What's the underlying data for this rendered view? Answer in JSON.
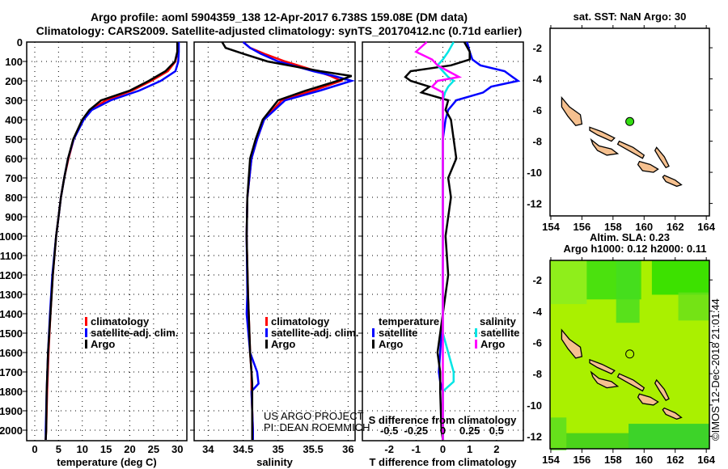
{
  "chart_data": [
    {
      "type": "line",
      "name": "temperature-panel",
      "xlabel": "temperature (deg C)",
      "xlim": [
        -1.7,
        32
      ],
      "ylim": [
        2050,
        0
      ],
      "xticks": [
        "0",
        "5",
        "10",
        "15",
        "20",
        "25",
        "30"
      ],
      "xtick_vals": [
        0,
        5,
        10,
        15,
        20,
        25,
        30
      ],
      "yticks": [
        "0",
        "100",
        "200",
        "300",
        "400",
        "500",
        "600",
        "700",
        "800",
        "900",
        "1000",
        "1100",
        "1200",
        "1300",
        "1400",
        "1500",
        "1600",
        "1700",
        "1800",
        "1900",
        "2000"
      ],
      "depth": [
        0,
        50,
        100,
        150,
        200,
        250,
        300,
        350,
        400,
        500,
        600,
        700,
        800,
        900,
        1000,
        1200,
        1400,
        1600,
        1800,
        2000,
        2050
      ],
      "series": [
        {
          "name": "climatology",
          "color": "#ff0000",
          "values": [
            30,
            30,
            29.6,
            28,
            24.5,
            20.5,
            15,
            11.8,
            10.2,
            8.2,
            7.1,
            6.2,
            5.5,
            5,
            4.5,
            3.8,
            3.3,
            2.9,
            2.6,
            2.4,
            2.3
          ]
        },
        {
          "name": "satellite-adj. clim.",
          "color": "#0000ff",
          "values": [
            30.3,
            30.3,
            30.2,
            29.6,
            26.5,
            22,
            16,
            12,
            10.3,
            8.2,
            7,
            6.2,
            5.5,
            5,
            4.5,
            3.7,
            3.2,
            2.8,
            2.5,
            2.3,
            2.3
          ]
        },
        {
          "name": "Argo",
          "color": "#000000",
          "values": [
            30,
            30,
            29.5,
            27.5,
            24,
            20,
            14,
            11.5,
            10,
            8.1,
            7,
            6.2,
            5.5,
            5,
            4.5,
            3.8,
            3.3,
            2.8,
            2.5,
            2.4,
            2.3
          ]
        }
      ]
    },
    {
      "type": "line",
      "name": "salinity-panel",
      "xlabel": "salinity",
      "xlim": [
        33.8,
        36.1
      ],
      "ylim": [
        2050,
        0
      ],
      "xticks": [
        "34",
        "34.5",
        "35",
        "35.5",
        "36"
      ],
      "xtick_vals": [
        34,
        34.5,
        35,
        35.5,
        36
      ],
      "depth": [
        0,
        30,
        60,
        100,
        150,
        175,
        200,
        250,
        300,
        400,
        500,
        600,
        800,
        1000,
        1300,
        1400,
        1600,
        1700,
        1760,
        1800,
        2000,
        2050
      ],
      "series": [
        {
          "name": "climatology",
          "color": "#ff0000",
          "values": [
            34.5,
            34.6,
            34.8,
            35.1,
            35.55,
            35.75,
            35.9,
            35.5,
            35.05,
            34.8,
            34.7,
            34.62,
            34.56,
            34.55,
            34.57,
            34.58,
            34.6,
            34.62,
            34.62,
            34.62,
            34.64,
            34.64
          ]
        },
        {
          "name": "satellite-adj. clim.",
          "color": "#0000ff",
          "values": [
            34.5,
            34.6,
            34.75,
            35.0,
            35.5,
            35.8,
            36.05,
            35.6,
            35.1,
            34.8,
            34.7,
            34.62,
            34.56,
            34.55,
            34.56,
            34.55,
            34.6,
            34.7,
            34.72,
            34.62,
            34.64,
            34.64
          ]
        },
        {
          "name": "Argo",
          "color": "#000000",
          "values": [
            34.2,
            34.25,
            34.5,
            34.85,
            35.6,
            36.05,
            35.85,
            35.4,
            35.0,
            34.78,
            34.68,
            34.6,
            34.56,
            34.55,
            34.57,
            34.58,
            34.6,
            34.62,
            34.63,
            34.63,
            34.63,
            34.63
          ]
        }
      ],
      "credit": [
        "US ARGO PROJECT",
        "PI: DEAN ROEMMICH"
      ]
    },
    {
      "type": "line",
      "name": "difference-panel",
      "xlabel": "T difference from climatology",
      "xlabel2": "S difference from climatology",
      "xlim": [
        -3,
        3
      ],
      "ylim": [
        2050,
        0
      ],
      "xticks": [
        "-2",
        "-1",
        "0",
        "1",
        "2"
      ],
      "xtick_vals": [
        -2,
        -1,
        0,
        1,
        2
      ],
      "sticks": [
        "-0.5",
        "-0.25",
        "0",
        "0.25",
        "0.5"
      ],
      "stick_vals": [
        -0.5,
        -0.25,
        0,
        0.25,
        0.5
      ],
      "depth": [
        0,
        50,
        90,
        120,
        150,
        180,
        200,
        230,
        260,
        300,
        350,
        400,
        500,
        600,
        700,
        800,
        1000,
        1200,
        1400,
        1500,
        1600,
        1700,
        1750,
        1800,
        2000,
        2050
      ],
      "series": [
        {
          "name": "temperature satellite",
          "unit": "T",
          "color": "#0000ff",
          "values": [
            0.9,
            1.0,
            1.1,
            1.4,
            2.3,
            2.6,
            2.8,
            1.8,
            1.5,
            0.5,
            0.2,
            0.1,
            0,
            0,
            0,
            0,
            0,
            0,
            0,
            -0.05,
            -0.1,
            -0.15,
            -0.1,
            0,
            0,
            0
          ]
        },
        {
          "name": "temperature Argo",
          "unit": "T",
          "color": "#000000",
          "values": [
            0.8,
            1.0,
            1.0,
            0.3,
            -1.2,
            -1.4,
            -1.2,
            -0.5,
            -0.8,
            0.2,
            0.1,
            0.3,
            0.4,
            0.5,
            0.2,
            0.3,
            0.1,
            0.2,
            0,
            -0.1,
            -0.2,
            -0.1,
            -0.1,
            -0.1,
            -0.05,
            0
          ]
        },
        {
          "name": "salinity satellite",
          "unit": "S",
          "color": "#00e5e5",
          "values": [
            0.1,
            0.05,
            0,
            -0.05,
            0,
            0.05,
            0.1,
            0.05,
            0.02,
            0,
            0,
            0,
            0,
            0,
            0,
            0,
            0,
            0,
            0,
            0,
            0.05,
            0.1,
            0.1,
            0,
            0,
            0
          ]
        },
        {
          "name": "salinity Argo",
          "unit": "S",
          "color": "#ff00ff",
          "values": [
            -0.15,
            -0.25,
            -0.1,
            -0.05,
            0.05,
            0.15,
            -0.05,
            -0.1,
            0,
            0,
            0,
            0,
            0,
            0,
            0,
            0,
            0,
            0,
            0,
            0,
            0,
            0,
            0,
            0,
            0,
            0
          ]
        }
      ]
    },
    {
      "type": "scatter",
      "name": "sst-map",
      "title": "sat. SST: NaN Argo: 30",
      "xlim": [
        153.95,
        164.2
      ],
      "ylim": [
        -12.8,
        -0.75
      ],
      "xticks": [
        "154",
        "156",
        "158",
        "160",
        "162",
        "164"
      ],
      "yticks": [
        "-2",
        "-4",
        "-6",
        "-8",
        "-10",
        "-12"
      ],
      "points": [
        {
          "lon": 159.08,
          "lat": -6.738,
          "color": "#33dd11"
        }
      ]
    },
    {
      "type": "heatmap",
      "name": "sla-map",
      "title": "Altim. SLA: 0.23",
      "subtitle": "Argo h1000: 0.12 h2000: 0.11",
      "xlim": [
        153.95,
        164.2
      ],
      "ylim": [
        -12.8,
        -0.75
      ],
      "xticks": [
        "154",
        "156",
        "158",
        "160",
        "162",
        "164"
      ],
      "yticks": [
        "-2",
        "-4",
        "-6",
        "-8",
        "-10",
        "-12"
      ],
      "points": [
        {
          "lon": 159.08,
          "lat": -6.738
        }
      ]
    }
  ],
  "title": "Argo profile: aoml 5904359_138 12-Apr-2017 6.738S 159.08E (DM data)",
  "subtitle": "Climatology: CARS2009. Satellite-adjusted climatology: synTS_20170412.nc (0.71d earlier)",
  "legend1": [
    "climatology",
    "satellite-adj. clim.",
    "Argo"
  ],
  "legend3": {
    "t_head": "temperature",
    "s_head": "salinity",
    "t": [
      "satellite",
      "Argo"
    ],
    "s": [
      "satellite",
      "Argo"
    ]
  },
  "stamp": "©IMOS 12-Dec-2018 21:01:44"
}
